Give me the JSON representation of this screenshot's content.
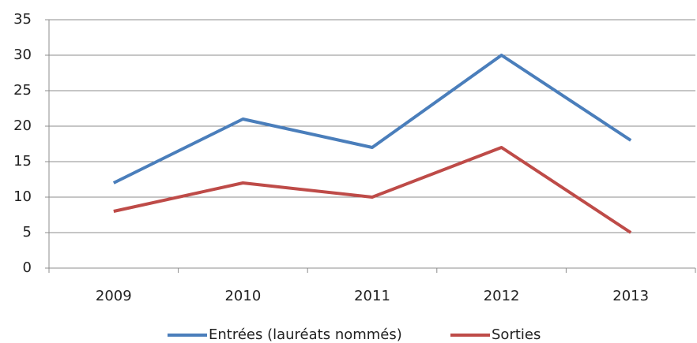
{
  "chart_data": {
    "type": "line",
    "categories": [
      "2009",
      "2010",
      "2011",
      "2012",
      "2013"
    ],
    "series": [
      {
        "name": "Entrées (lauréats nommés)",
        "color": "#4a7ebb",
        "values": [
          12,
          21,
          17,
          30,
          18
        ]
      },
      {
        "name": "Sorties",
        "color": "#be4b48",
        "values": [
          8,
          12,
          10,
          17,
          5
        ]
      }
    ],
    "ylim": [
      0,
      35
    ],
    "yticks": [
      0,
      5,
      10,
      15,
      20,
      25,
      30,
      35
    ],
    "grid": true,
    "legend": "bottom"
  }
}
